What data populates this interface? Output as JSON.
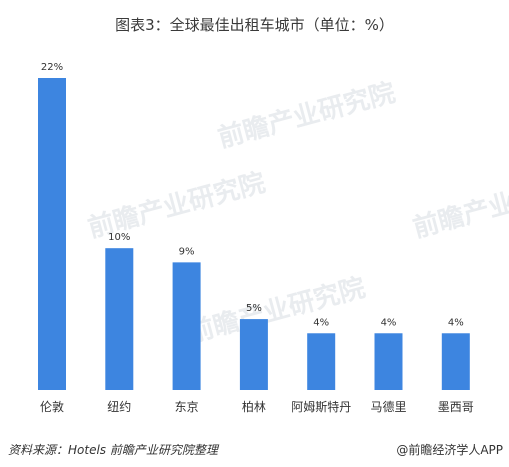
{
  "chart_data": {
    "type": "bar",
    "title": "图表3：全球最佳出租车城市（单位：%）",
    "categories": [
      "伦敦",
      "纽约",
      "东京",
      "柏林",
      "阿姆斯特丹",
      "马德里",
      "墨西哥"
    ],
    "values": [
      22,
      10,
      9,
      5,
      4,
      4,
      4
    ],
    "value_labels": [
      "22%",
      "10%",
      "9%",
      "5%",
      "4%",
      "4%",
      "4%"
    ],
    "ylim": [
      0,
      22
    ],
    "grid": false,
    "bar_color": "#3d85e0"
  },
  "watermark": "前瞻产业研究院",
  "footer": {
    "source": "资料来源：Hotels  前瞻产业研究院整理",
    "brand": "@前瞻经济学人APP"
  }
}
